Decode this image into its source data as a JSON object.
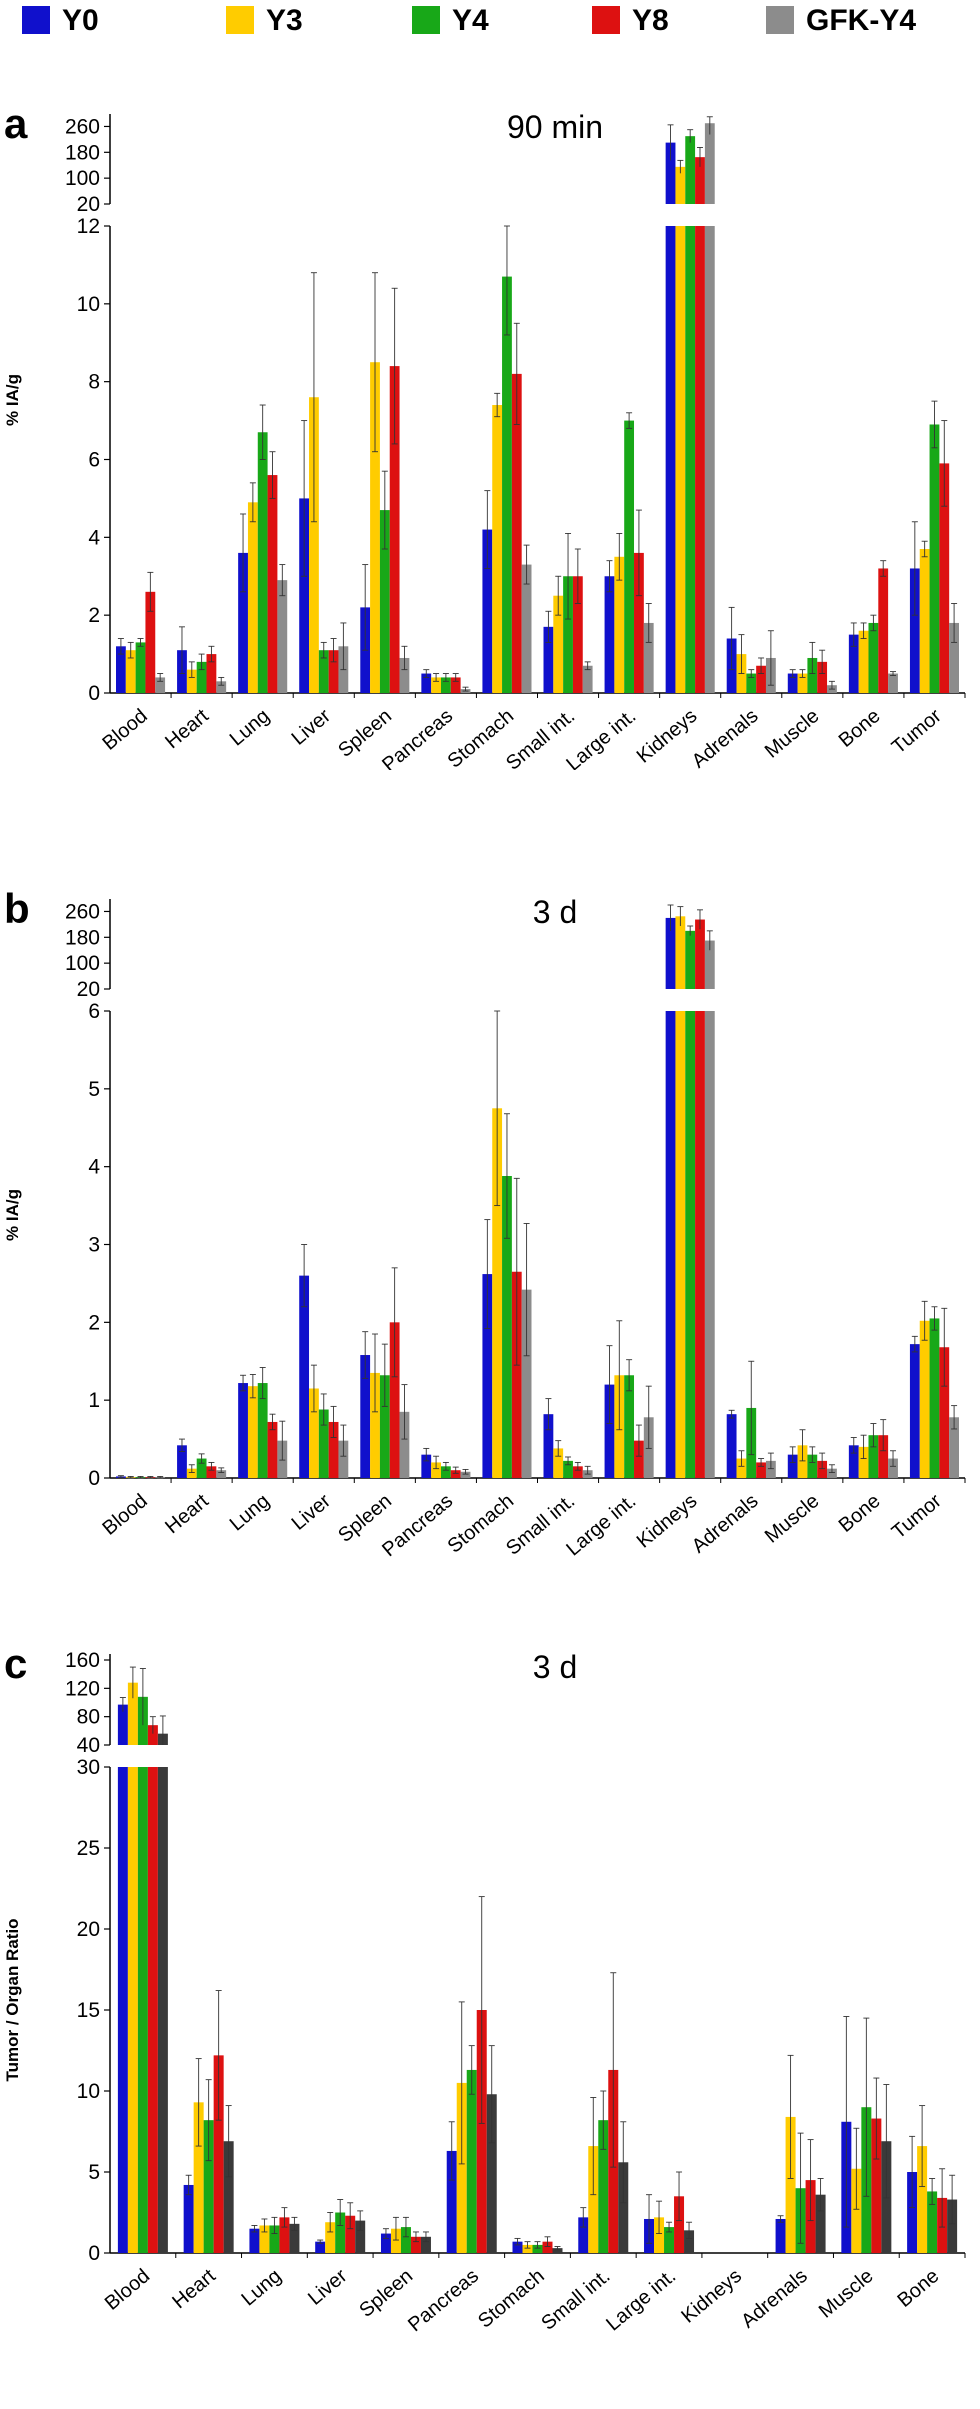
{
  "legend": [
    {
      "name": "Y0",
      "color": "#1010cc"
    },
    {
      "name": "Y3",
      "color": "#ffcc00"
    },
    {
      "name": "Y4",
      "color": "#18a818"
    },
    {
      "name": "Y8",
      "color": "#dd1111"
    },
    {
      "name": "GFK-Y4",
      "color": "#8c8c8c"
    }
  ],
  "chart_data": [
    {
      "type": "bar",
      "panel_letter": "a",
      "title": "90  min",
      "ylabel": "% IA/g",
      "broken_axis": true,
      "lower_ylim": [
        0,
        12
      ],
      "lower_ticks": [
        0,
        2,
        4,
        6,
        8,
        10,
        12
      ],
      "upper_ylim": [
        20,
        280
      ],
      "upper_ticks": [
        20,
        100,
        180,
        260
      ],
      "categories": [
        "Blood",
        "Heart",
        "Lung",
        "Liver",
        "Spleen",
        "Pancreas",
        "Stomach",
        "Small int.",
        "Large int.",
        "Kidneys",
        "Adrenals",
        "Muscle",
        "Bone",
        "Tumor"
      ],
      "series": [
        {
          "name": "Y0",
          "color": "#1010cc",
          "values": [
            1.2,
            1.1,
            3.6,
            5.0,
            2.2,
            0.5,
            4.2,
            1.7,
            3.0,
            210,
            1.4,
            0.5,
            1.5,
            3.2
          ],
          "errors": [
            0.2,
            0.6,
            1.0,
            2.0,
            1.1,
            0.1,
            1.0,
            0.4,
            0.4,
            55,
            0.8,
            0.1,
            0.3,
            1.2
          ]
        },
        {
          "name": "Y3",
          "color": "#ffcc00",
          "values": [
            1.1,
            0.6,
            4.9,
            7.6,
            8.5,
            0.4,
            7.4,
            2.5,
            3.5,
            135,
            1.0,
            0.5,
            1.6,
            3.7
          ],
          "errors": [
            0.2,
            0.2,
            0.5,
            3.2,
            2.3,
            0.1,
            0.3,
            0.5,
            0.6,
            20,
            0.5,
            0.1,
            0.2,
            0.2
          ]
        },
        {
          "name": "Y4",
          "color": "#18a818",
          "values": [
            1.3,
            0.8,
            6.7,
            1.1,
            4.7,
            0.4,
            10.7,
            3.0,
            7.0,
            230,
            0.5,
            0.9,
            1.8,
            6.9
          ],
          "errors": [
            0.1,
            0.2,
            0.7,
            0.2,
            1.0,
            0.1,
            1.5,
            1.1,
            0.2,
            20,
            0.1,
            0.4,
            0.2,
            0.6
          ]
        },
        {
          "name": "Y8",
          "color": "#dd1111",
          "values": [
            2.6,
            1.0,
            5.6,
            1.1,
            8.4,
            0.4,
            8.2,
            3.0,
            3.6,
            165,
            0.7,
            0.8,
            3.2,
            5.9
          ],
          "errors": [
            0.5,
            0.2,
            0.6,
            0.3,
            2.0,
            0.1,
            1.3,
            0.7,
            1.1,
            30,
            0.2,
            0.3,
            0.2,
            1.1
          ]
        },
        {
          "name": "GFK-Y4",
          "color": "#8c8c8c",
          "values": [
            0.4,
            0.3,
            2.9,
            1.2,
            0.9,
            0.1,
            3.3,
            0.7,
            1.8,
            270,
            0.9,
            0.2,
            0.5,
            1.8
          ],
          "errors": [
            0.1,
            0.1,
            0.4,
            0.6,
            0.3,
            0.05,
            0.5,
            0.1,
            0.5,
            35,
            0.7,
            0.1,
            0.05,
            0.5
          ]
        }
      ]
    },
    {
      "type": "bar",
      "panel_letter": "b",
      "title": "3 d",
      "ylabel": "% IA/g",
      "broken_axis": true,
      "lower_ylim": [
        0,
        6
      ],
      "lower_ticks": [
        0,
        1,
        2,
        3,
        4,
        5,
        6
      ],
      "upper_ylim": [
        20,
        280
      ],
      "upper_ticks": [
        20,
        100,
        180,
        260
      ],
      "categories": [
        "Blood",
        "Heart",
        "Lung",
        "Liver",
        "Spleen",
        "Pancreas",
        "Stomach",
        "Small int.",
        "Large int.",
        "Kidneys",
        "Adrenals",
        "Muscle",
        "Bone",
        "Tumor"
      ],
      "series": [
        {
          "name": "Y0",
          "color": "#1010cc",
          "values": [
            0.02,
            0.42,
            1.22,
            2.6,
            1.58,
            0.3,
            2.62,
            0.82,
            1.2,
            240,
            0.82,
            0.3,
            0.42,
            1.72
          ],
          "errors": [
            0.01,
            0.08,
            0.1,
            0.4,
            0.3,
            0.08,
            0.7,
            0.2,
            0.5,
            40,
            0.05,
            0.1,
            0.1,
            0.1
          ]
        },
        {
          "name": "Y3",
          "color": "#ffcc00",
          "values": [
            0.01,
            0.12,
            1.18,
            1.15,
            1.35,
            0.2,
            4.75,
            0.38,
            1.32,
            245,
            0.25,
            0.42,
            0.4,
            2.02
          ],
          "errors": [
            0.01,
            0.05,
            0.15,
            0.3,
            0.5,
            0.08,
            1.25,
            0.1,
            0.7,
            30,
            0.1,
            0.2,
            0.15,
            0.25
          ]
        },
        {
          "name": "Y4",
          "color": "#18a818",
          "values": [
            0.01,
            0.25,
            1.22,
            0.88,
            1.32,
            0.15,
            3.88,
            0.22,
            1.32,
            200,
            0.9,
            0.3,
            0.55,
            2.05
          ],
          "errors": [
            0.01,
            0.06,
            0.2,
            0.2,
            0.4,
            0.05,
            0.8,
            0.05,
            0.2,
            15,
            0.6,
            0.1,
            0.15,
            0.15
          ]
        },
        {
          "name": "Y8",
          "color": "#dd1111",
          "values": [
            0.01,
            0.15,
            0.72,
            0.72,
            2.0,
            0.1,
            2.65,
            0.15,
            0.48,
            235,
            0.2,
            0.22,
            0.55,
            1.68
          ],
          "errors": [
            0.01,
            0.05,
            0.1,
            0.2,
            0.7,
            0.04,
            1.2,
            0.05,
            0.2,
            30,
            0.05,
            0.1,
            0.2,
            0.5
          ]
        },
        {
          "name": "GFK-Y4",
          "color": "#8c8c8c",
          "values": [
            0.01,
            0.1,
            0.48,
            0.48,
            0.85,
            0.08,
            2.42,
            0.1,
            0.78,
            170,
            0.22,
            0.12,
            0.25,
            0.78
          ],
          "errors": [
            0.01,
            0.03,
            0.25,
            0.2,
            0.35,
            0.03,
            0.85,
            0.05,
            0.4,
            30,
            0.1,
            0.05,
            0.1,
            0.15
          ]
        }
      ]
    },
    {
      "type": "bar",
      "panel_letter": "c",
      "title": "3 d",
      "ylabel": "Tumor / Organ Ratio",
      "broken_axis": true,
      "lower_ylim": [
        0,
        30
      ],
      "lower_ticks": [
        0,
        5,
        10,
        15,
        20,
        25,
        30
      ],
      "upper_ylim": [
        40,
        160
      ],
      "upper_ticks": [
        40,
        80,
        120,
        160
      ],
      "categories": [
        "Blood",
        "Heart",
        "Lung",
        "Liver",
        "Spleen",
        "Pancreas",
        "Stomach",
        "Small int.",
        "Large int.",
        "Kidneys",
        "Adrenals",
        "Muscle",
        "Bone"
      ],
      "series": [
        {
          "name": "Y0",
          "color": "#1010cc",
          "values": [
            97,
            4.2,
            1.5,
            0.7,
            1.2,
            6.3,
            0.7,
            2.2,
            2.1,
            0,
            2.1,
            8.1,
            5.0
          ],
          "errors": [
            10,
            0.6,
            0.2,
            0.1,
            0.3,
            1.8,
            0.2,
            0.6,
            1.5,
            0,
            0.2,
            6.5,
            2.2
          ]
        },
        {
          "name": "Y3",
          "color": "#ffcc00",
          "values": [
            128,
            9.3,
            1.7,
            1.9,
            1.5,
            10.5,
            0.5,
            6.6,
            2.2,
            0,
            8.4,
            5.2,
            6.6
          ],
          "errors": [
            22,
            2.7,
            0.4,
            0.6,
            0.7,
            5.0,
            0.2,
            3.0,
            1.0,
            0,
            3.8,
            2.5,
            2.5
          ]
        },
        {
          "name": "Y4",
          "color": "#18a818",
          "values": [
            108,
            8.2,
            1.7,
            2.5,
            1.6,
            11.3,
            0.5,
            8.2,
            1.6,
            0,
            4.0,
            9.0,
            3.8
          ],
          "errors": [
            40,
            2.5,
            0.5,
            0.8,
            0.6,
            1.5,
            0.2,
            1.8,
            0.3,
            0,
            3.4,
            5.5,
            0.8
          ]
        },
        {
          "name": "Y8",
          "color": "#dd1111",
          "values": [
            68,
            12.2,
            2.2,
            2.3,
            1.0,
            15.0,
            0.7,
            11.3,
            3.5,
            0,
            4.5,
            8.3,
            3.4
          ],
          "errors": [
            12,
            4.0,
            0.6,
            0.8,
            0.3,
            7.0,
            0.3,
            6.0,
            1.5,
            0,
            2.5,
            2.5,
            1.8
          ]
        },
        {
          "name": "GFK-Y4",
          "color": "#3a3a3a",
          "values": [
            56,
            6.9,
            1.8,
            2.0,
            1.0,
            9.8,
            0.3,
            5.6,
            1.4,
            0,
            3.6,
            6.9,
            3.3
          ],
          "errors": [
            25,
            2.2,
            0.4,
            0.6,
            0.3,
            3.0,
            0.1,
            2.5,
            0.5,
            0,
            1.0,
            3.5,
            1.5
          ]
        }
      ]
    }
  ]
}
